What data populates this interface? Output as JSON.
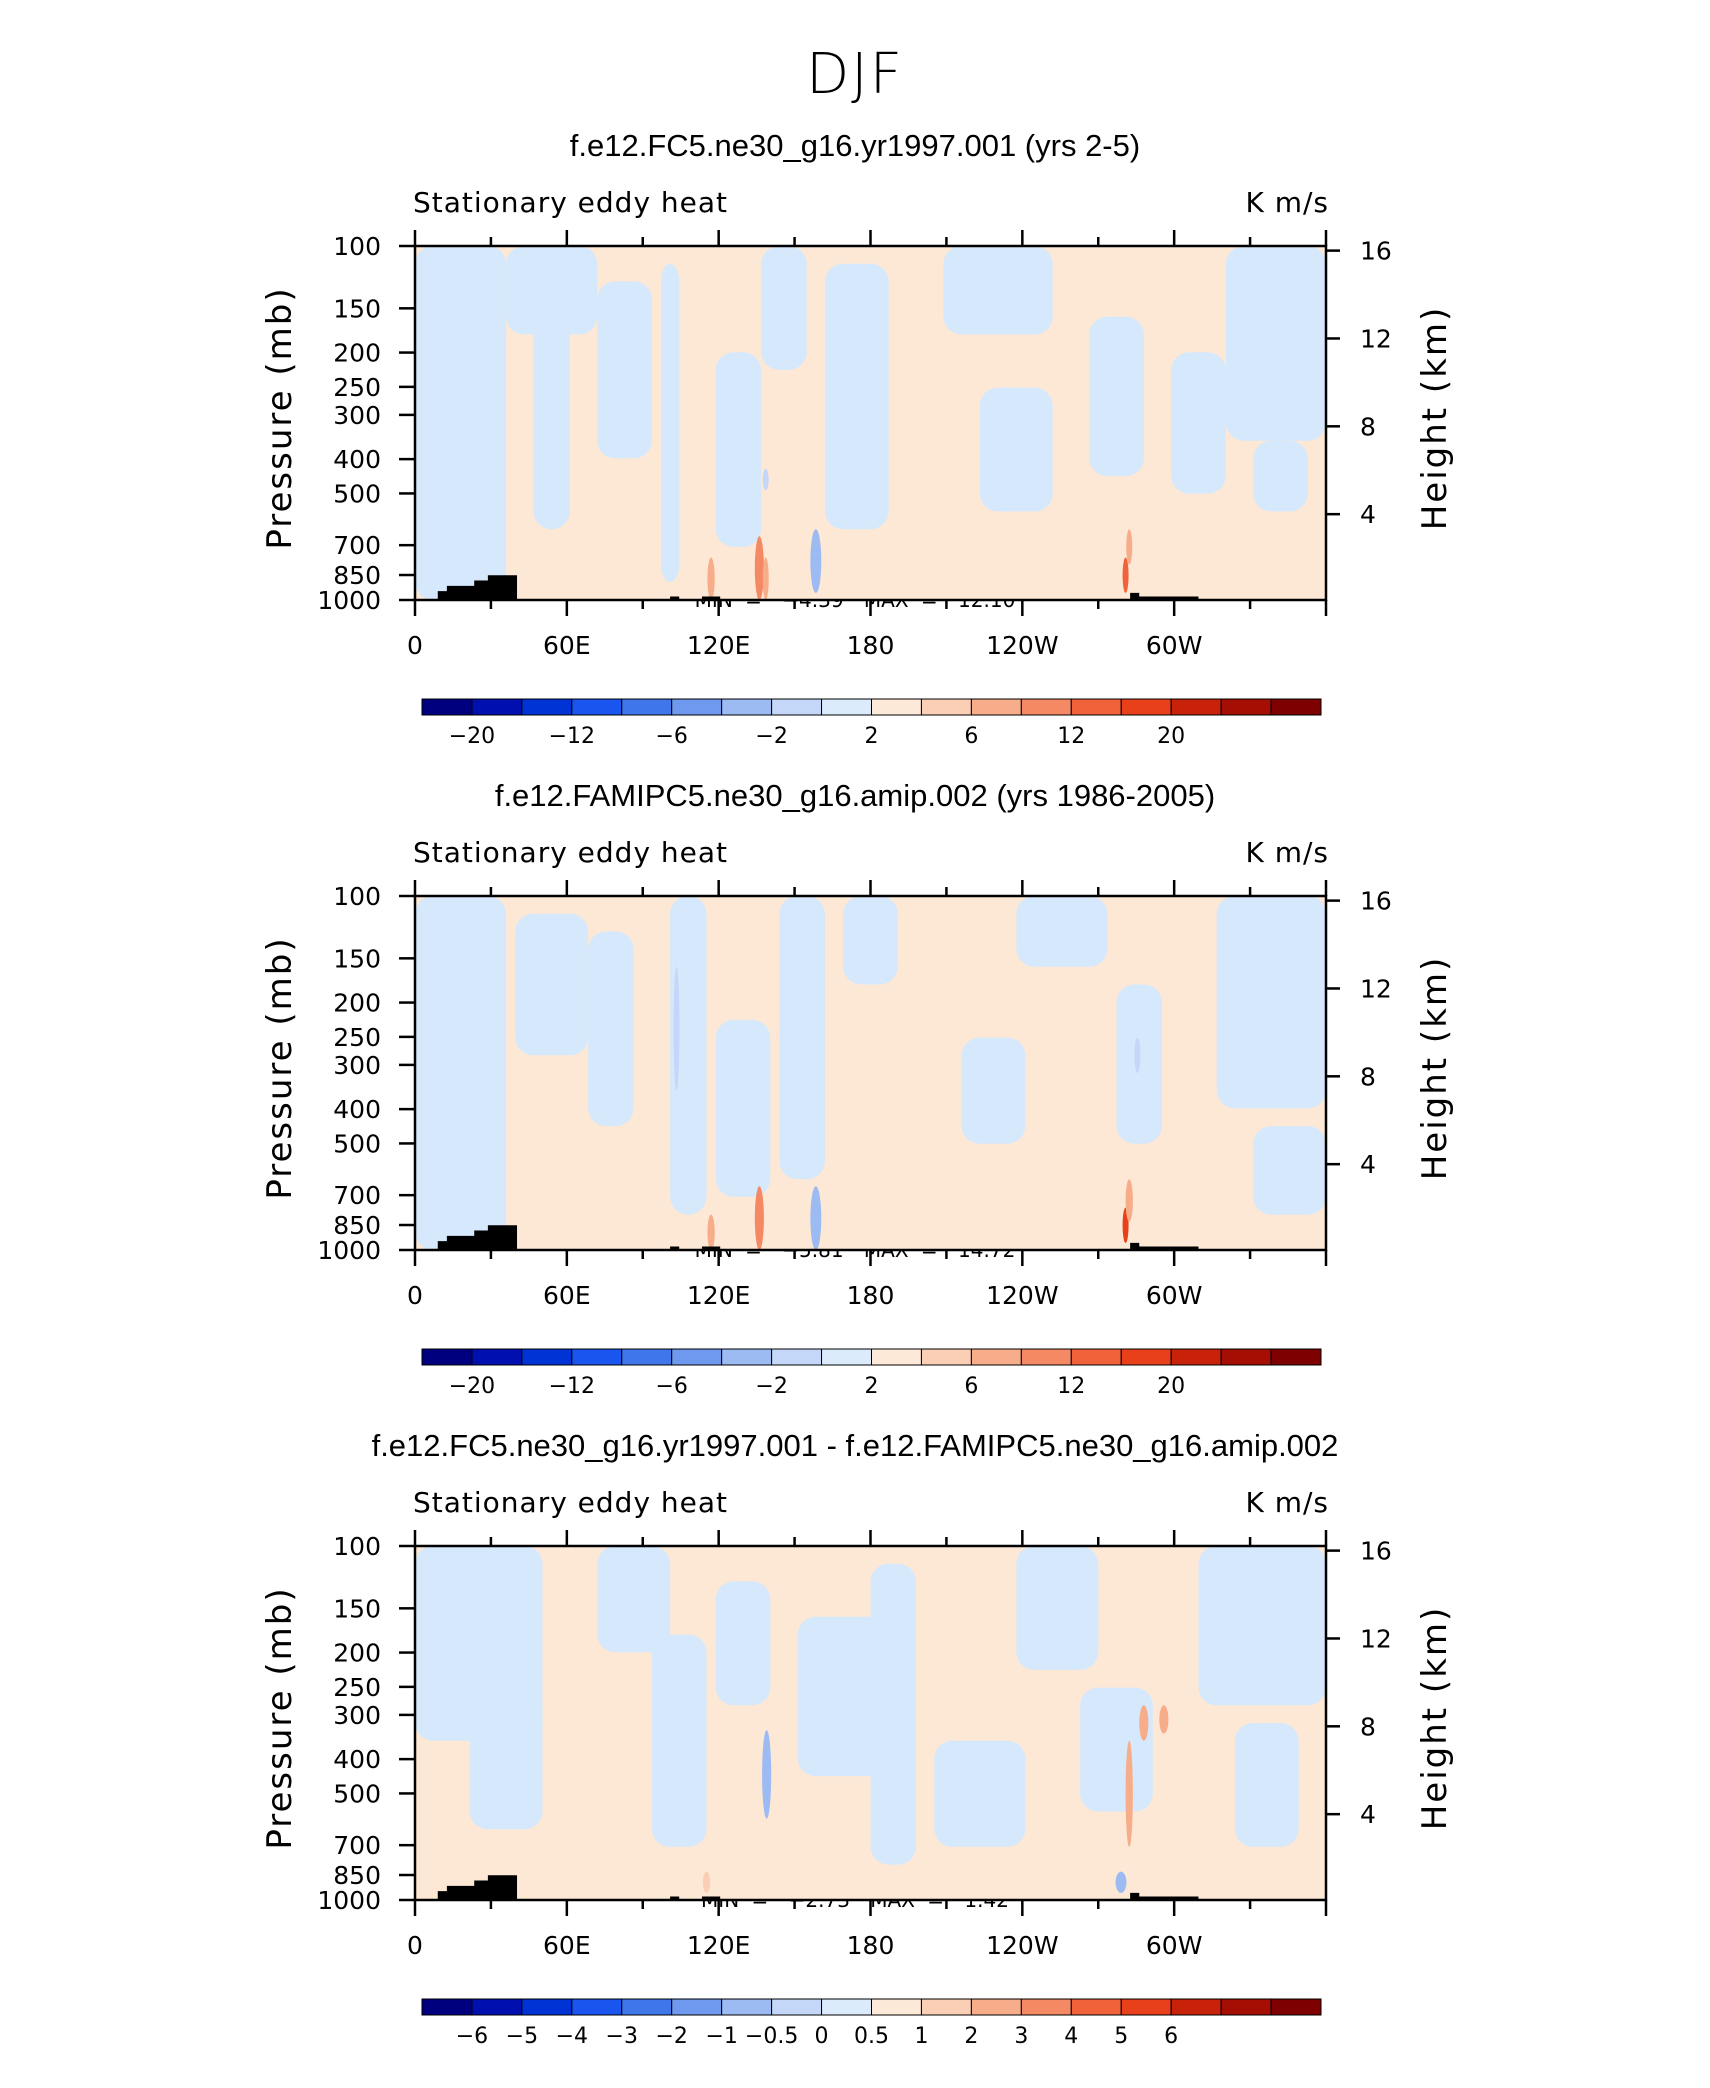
{
  "figure_title": "DJF",
  "colors": {
    "blue_light": "#d6e8fb",
    "orange_light": "#fde8d6",
    "topography": "#000000",
    "palette": [
      "#00007f",
      "#0010b0",
      "#0033d6",
      "#1a55f0",
      "#3f76ea",
      "#6e99ee",
      "#9dbbf3",
      "#c4d7f8",
      "#dcebfb",
      "#fde9d8",
      "#fbcfb5",
      "#f7ad8a",
      "#f48964",
      "#f1623a",
      "#e8401a",
      "#c9220b",
      "#a50e02",
      "#7e0000"
    ]
  },
  "chart_data": [
    {
      "type": "heatmap",
      "title": "f.e12.FC5.ne30_g16.yr1997.001 (yrs 2-5)",
      "field_label": "Stationary eddy heat",
      "units": "K m/s",
      "ylabel": "Pressure (mb)",
      "ylabel_right": "Height (km)",
      "y_ticks": [
        "100",
        "150",
        "200",
        "250",
        "300",
        "400",
        "500",
        "700",
        "850",
        "1000"
      ],
      "y_right_ticks": [
        "16",
        "12",
        "8",
        "4"
      ],
      "x_ticks": [
        "0",
        "60E",
        "120E",
        "180",
        "120W",
        "60W"
      ],
      "min_label": "MIN =",
      "min_value": "−4.39",
      "max_label": "MAX =",
      "max_value": "12.10",
      "colorbar_labels": [
        "−20",
        "−12",
        "−6",
        "−2",
        "2",
        "6",
        "12",
        "20"
      ],
      "colorbar_positions": [
        1,
        3,
        5,
        7,
        9,
        11,
        13,
        15
      ],
      "ylim": [
        1000,
        100
      ],
      "xlim": [
        0,
        360
      ]
    },
    {
      "type": "heatmap",
      "title": "f.e12.FAMIPC5.ne30_g16.amip.002 (yrs 1986-2005)",
      "field_label": "Stationary eddy heat",
      "units": "K m/s",
      "ylabel": "Pressure (mb)",
      "ylabel_right": "Height (km)",
      "y_ticks": [
        "100",
        "150",
        "200",
        "250",
        "300",
        "400",
        "500",
        "700",
        "850",
        "1000"
      ],
      "y_right_ticks": [
        "16",
        "12",
        "8",
        "4"
      ],
      "x_ticks": [
        "0",
        "60E",
        "120E",
        "180",
        "120W",
        "60W"
      ],
      "min_label": "MIN =",
      "min_value": "−5.81",
      "max_label": "MAX =",
      "max_value": "14.72",
      "colorbar_labels": [
        "−20",
        "−12",
        "−6",
        "−2",
        "2",
        "6",
        "12",
        "20"
      ],
      "colorbar_positions": [
        1,
        3,
        5,
        7,
        9,
        11,
        13,
        15
      ],
      "ylim": [
        1000,
        100
      ],
      "xlim": [
        0,
        360
      ]
    },
    {
      "type": "heatmap",
      "title": "f.e12.FC5.ne30_g16.yr1997.001 - f.e12.FAMIPC5.ne30_g16.amip.002",
      "field_label": "Stationary eddy heat",
      "units": "K m/s",
      "ylabel": "Pressure (mb)",
      "ylabel_right": "Height (km)",
      "y_ticks": [
        "100",
        "150",
        "200",
        "250",
        "300",
        "400",
        "500",
        "700",
        "850",
        "1000"
      ],
      "y_right_ticks": [
        "16",
        "12",
        "8",
        "4"
      ],
      "x_ticks": [
        "0",
        "60E",
        "120E",
        "180",
        "120W",
        "60W"
      ],
      "min_label": "MIN =",
      "min_value": "−2.73",
      "max_label": "MAX =",
      "max_value": "1.42",
      "colorbar_labels": [
        "−6",
        "−5",
        "−4",
        "−3",
        "−2",
        "−1",
        "−0.5",
        "0",
        "0.5",
        "1",
        "2",
        "3",
        "4",
        "5",
        "6"
      ],
      "colorbar_positions": [
        1,
        2,
        3,
        4,
        5,
        6,
        7,
        8,
        9,
        10,
        11,
        12,
        13,
        14,
        15
      ],
      "ylim": [
        1000,
        100
      ],
      "xlim": [
        0,
        360
      ]
    }
  ]
}
